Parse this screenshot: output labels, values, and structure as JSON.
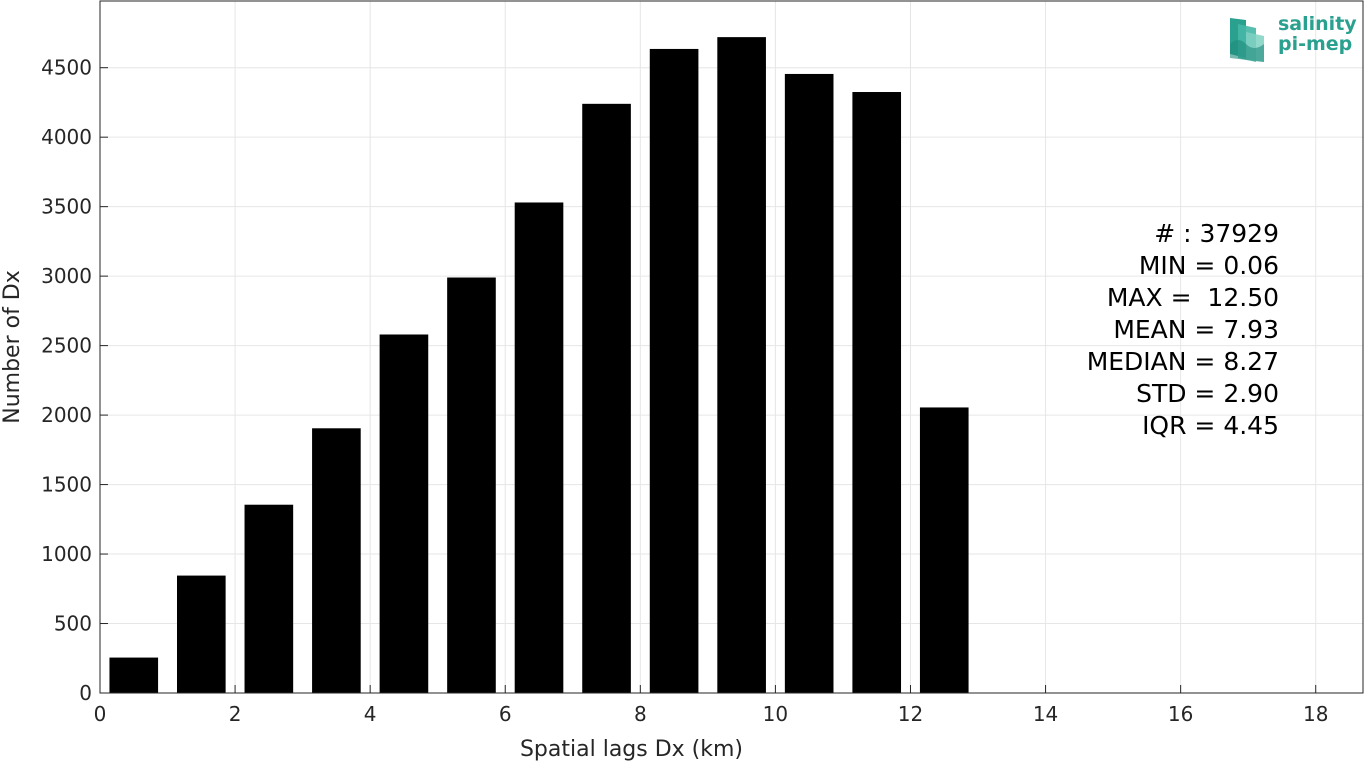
{
  "chart_data": {
    "type": "bar",
    "title": "",
    "xlabel": "Spatial lags Dx (km)",
    "ylabel": "Number of Dx",
    "xlim": [
      0,
      18.7
    ],
    "ylim": [
      0,
      4980
    ],
    "xticks": [
      0,
      2,
      4,
      6,
      8,
      10,
      12,
      14,
      16,
      18
    ],
    "yticks": [
      0,
      500,
      1000,
      1500,
      2000,
      2500,
      3000,
      3500,
      4000,
      4500
    ],
    "grid": true,
    "bar_color": "#000000",
    "bins": [
      {
        "center": 0.5,
        "value": 255
      },
      {
        "center": 1.5,
        "value": 845
      },
      {
        "center": 2.5,
        "value": 1355
      },
      {
        "center": 3.5,
        "value": 1905
      },
      {
        "center": 4.5,
        "value": 2580
      },
      {
        "center": 5.5,
        "value": 2990
      },
      {
        "center": 6.5,
        "value": 3530
      },
      {
        "center": 7.5,
        "value": 4240
      },
      {
        "center": 8.5,
        "value": 4635
      },
      {
        "center": 9.5,
        "value": 4720
      },
      {
        "center": 10.5,
        "value": 4455
      },
      {
        "center": 11.5,
        "value": 4325
      },
      {
        "center": 12.5,
        "value": 2055
      }
    ]
  },
  "stats": [
    "# : 37929",
    "MIN = 0.06",
    "MAX =  12.50",
    "MEAN = 7.93",
    "MEDIAN = 8.27",
    "STD = 2.90",
    "IQR = 4.45"
  ],
  "logo": {
    "line1": "salinity",
    "line2": "pi-mep",
    "color": "#2aa08f"
  }
}
